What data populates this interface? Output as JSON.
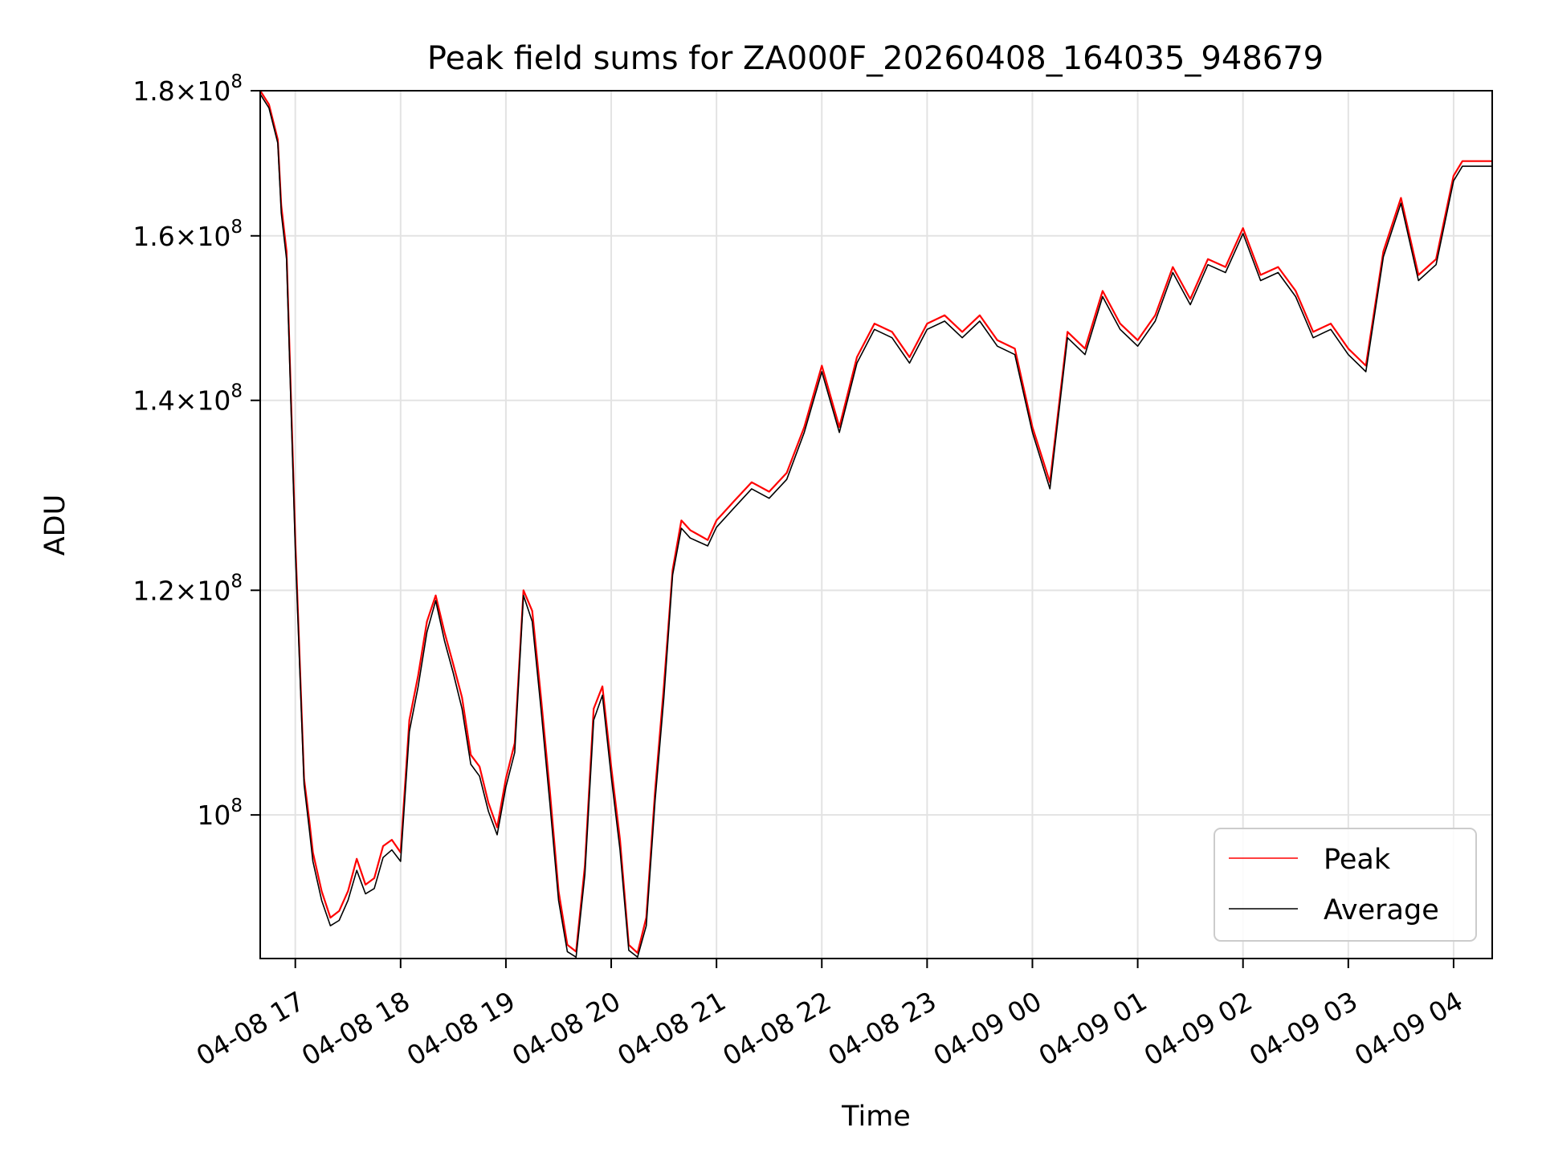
{
  "chart_data": {
    "type": "line",
    "title": "Peak field sums for ZA000F_20260408_164035_948679",
    "xlabel": "Time",
    "ylabel": "ADU",
    "yscale": "log",
    "ylim": [
      89000000,
      180000000
    ],
    "xlim": [
      "04-08 16:40",
      "04-09 04:22"
    ],
    "grid": true,
    "legend_position": "lower-right",
    "x_ticks": [
      {
        "time": "04-08 17:00",
        "label": "04-08 17"
      },
      {
        "time": "04-08 18:00",
        "label": "04-08 18"
      },
      {
        "time": "04-08 19:00",
        "label": "04-08 19"
      },
      {
        "time": "04-08 20:00",
        "label": "04-08 20"
      },
      {
        "time": "04-08 21:00",
        "label": "04-08 21"
      },
      {
        "time": "04-08 22:00",
        "label": "04-08 22"
      },
      {
        "time": "04-08 23:00",
        "label": "04-08 23"
      },
      {
        "time": "04-09 00:00",
        "label": "04-09 00"
      },
      {
        "time": "04-09 01:00",
        "label": "04-09 01"
      },
      {
        "time": "04-09 02:00",
        "label": "04-09 02"
      },
      {
        "time": "04-09 03:00",
        "label": "04-09 03"
      },
      {
        "time": "04-09 04:00",
        "label": "04-09 04"
      }
    ],
    "y_ticks": [
      {
        "value": 100000000,
        "mantissa": "",
        "exponent": "8"
      },
      {
        "value": 120000000,
        "mantissa": "1.2",
        "exponent": "8"
      },
      {
        "value": 140000000,
        "mantissa": "1.4",
        "exponent": "8"
      },
      {
        "value": 160000000,
        "mantissa": "1.6",
        "exponent": "8"
      },
      {
        "value": 180000000,
        "mantissa": "1.8",
        "exponent": "8"
      }
    ],
    "x": [
      "04-08 16:40",
      "04-08 16:45",
      "04-08 16:50",
      "04-08 16:52",
      "04-08 16:55",
      "04-08 17:00",
      "04-08 17:05",
      "04-08 17:08",
      "04-08 17:10",
      "04-08 17:15",
      "04-08 17:20",
      "04-08 17:25",
      "04-08 17:30",
      "04-08 17:35",
      "04-08 17:40",
      "04-08 17:45",
      "04-08 17:50",
      "04-08 17:55",
      "04-08 18:00",
      "04-08 18:05",
      "04-08 18:10",
      "04-08 18:15",
      "04-08 18:20",
      "04-08 18:25",
      "04-08 18:30",
      "04-08 18:35",
      "04-08 18:40",
      "04-08 18:45",
      "04-08 18:50",
      "04-08 18:55",
      "04-08 19:00",
      "04-08 19:05",
      "04-08 19:10",
      "04-08 19:15",
      "04-08 19:20",
      "04-08 19:25",
      "04-08 19:30",
      "04-08 19:35",
      "04-08 19:40",
      "04-08 19:45",
      "04-08 19:50",
      "04-08 19:55",
      "04-08 20:00",
      "04-08 20:05",
      "04-08 20:10",
      "04-08 20:15",
      "04-08 20:20",
      "04-08 20:25",
      "04-08 20:30",
      "04-08 20:35",
      "04-08 20:40",
      "04-08 20:45",
      "04-08 20:50",
      "04-08 20:55",
      "04-08 21:00",
      "04-08 21:10",
      "04-08 21:20",
      "04-08 21:30",
      "04-08 21:40",
      "04-08 21:50",
      "04-08 22:00",
      "04-08 22:10",
      "04-08 22:20",
      "04-08 22:30",
      "04-08 22:40",
      "04-08 22:50",
      "04-08 23:00",
      "04-08 23:10",
      "04-08 23:20",
      "04-08 23:30",
      "04-08 23:40",
      "04-08 23:50",
      "04-09 00:00",
      "04-09 00:10",
      "04-09 00:20",
      "04-09 00:30",
      "04-09 00:40",
      "04-09 00:50",
      "04-09 01:00",
      "04-09 01:10",
      "04-09 01:20",
      "04-09 01:30",
      "04-09 01:40",
      "04-09 01:50",
      "04-09 02:00",
      "04-09 02:10",
      "04-09 02:20",
      "04-09 02:30",
      "04-09 02:40",
      "04-09 02:50",
      "04-09 03:00",
      "04-09 03:10",
      "04-09 03:20",
      "04-09 03:30",
      "04-09 03:40",
      "04-09 03:50",
      "04-09 04:00",
      "04-09 04:05",
      "04-09 04:10",
      "04-09 04:15",
      "04-09 04:20",
      "04-09 04:22"
    ],
    "series": [
      {
        "name": "Peak",
        "color": "#ff0000",
        "values": [
          180000000,
          178000000,
          173000000,
          164000000,
          158000000,
          125000000,
          103000000,
          99500000,
          97000000,
          94000000,
          92000000,
          92500000,
          94000000,
          96500000,
          94500000,
          95000000,
          97500000,
          98000000,
          97000000,
          108000000,
          112000000,
          117000000,
          119500000,
          116000000,
          113000000,
          110000000,
          105000000,
          104000000,
          101000000,
          99000000,
          103000000,
          106000000,
          120000000,
          118000000,
          110000000,
          102000000,
          94000000,
          90000000,
          89500000,
          96000000,
          109000000,
          111000000,
          104000000,
          98000000,
          90000000,
          89400000,
          92000000,
          102000000,
          111000000,
          122000000,
          127000000,
          126000000,
          125500000,
          125000000,
          127000000,
          129000000,
          131000000,
          130000000,
          132000000,
          137000000,
          144000000,
          137000000,
          145000000,
          149000000,
          148000000,
          145000000,
          149000000,
          150000000,
          148000000,
          150000000,
          147000000,
          146000000,
          137000000,
          131000000,
          148000000,
          146000000,
          153000000,
          149000000,
          147000000,
          150000000,
          156000000,
          152000000,
          157000000,
          156000000,
          161000000,
          155000000,
          156000000,
          153000000,
          148000000,
          149000000,
          146000000,
          144000000,
          158000000,
          165000000,
          155000000,
          157000000,
          168000000,
          170000000,
          170000000,
          170000000,
          170000000,
          170000000
        ]
      },
      {
        "name": "Average",
        "color": "#000000",
        "values": [
          179500000,
          177500000,
          172500000,
          163000000,
          157000000,
          124000000,
          102500000,
          98800000,
          96300000,
          93300000,
          91400000,
          91800000,
          93300000,
          95600000,
          93800000,
          94200000,
          96600000,
          97200000,
          96300000,
          107000000,
          111000000,
          116000000,
          119000000,
          115200000,
          112200000,
          109000000,
          104200000,
          103200000,
          100300000,
          98400000,
          102300000,
          105200000,
          119500000,
          117000000,
          109000000,
          101000000,
          93300000,
          89500000,
          89100000,
          95300000,
          108000000,
          110200000,
          103200000,
          97200000,
          89600000,
          89100000,
          91400000,
          101200000,
          110000000,
          121500000,
          126200000,
          125200000,
          124800000,
          124400000,
          126300000,
          128300000,
          130300000,
          129300000,
          131300000,
          136400000,
          143300000,
          136400000,
          144300000,
          148300000,
          147300000,
          144300000,
          148300000,
          149300000,
          147300000,
          149300000,
          146300000,
          145300000,
          136400000,
          130300000,
          147300000,
          145300000,
          152300000,
          148300000,
          146300000,
          149300000,
          155300000,
          151300000,
          156300000,
          155300000,
          160300000,
          154300000,
          155300000,
          152300000,
          147300000,
          148300000,
          145300000,
          143300000,
          157300000,
          164300000,
          154300000,
          156300000,
          167300000,
          169300000,
          169300000,
          169300000,
          169300000,
          169300000
        ]
      }
    ]
  }
}
